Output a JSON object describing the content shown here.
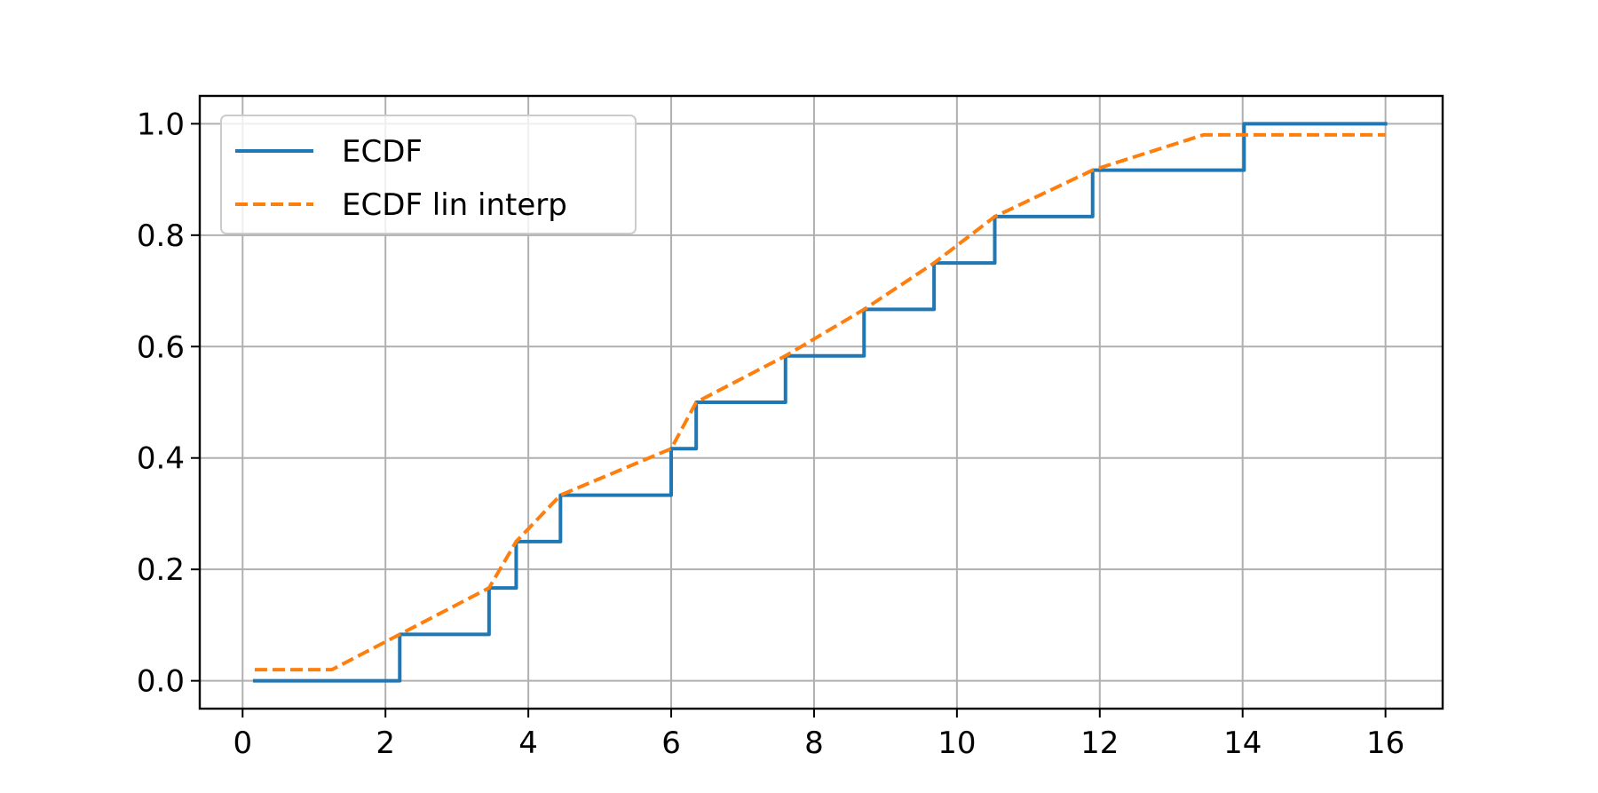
{
  "chart_data": {
    "type": "line",
    "title": "",
    "xlabel": "",
    "ylabel": "",
    "xlim": [
      -0.6,
      16.8
    ],
    "ylim": [
      -0.05,
      1.05
    ],
    "x_ticks": [
      0,
      2,
      4,
      6,
      8,
      10,
      12,
      14,
      16
    ],
    "x_tick_labels": [
      "0",
      "2",
      "4",
      "6",
      "8",
      "10",
      "12",
      "14",
      "16"
    ],
    "y_ticks": [
      0.0,
      0.2,
      0.4,
      0.6,
      0.8,
      1.0
    ],
    "y_tick_labels": [
      "0.0",
      "0.2",
      "0.4",
      "0.6",
      "0.8",
      "1.0"
    ],
    "grid": true,
    "legend": {
      "position": "top-left",
      "entries": [
        "ECDF",
        "ECDF lin interp"
      ]
    },
    "series": [
      {
        "name": "ECDF",
        "style": "step-post",
        "color": "#1f77b4",
        "x": [
          0.17,
          2.2,
          3.45,
          3.83,
          4.45,
          6.0,
          6.35,
          7.6,
          8.7,
          9.68,
          10.53,
          11.9,
          14.02,
          16.0
        ],
        "y": [
          0.0,
          0.0833,
          0.1667,
          0.25,
          0.3333,
          0.4167,
          0.5,
          0.5833,
          0.6667,
          0.75,
          0.8333,
          0.9167,
          1.0,
          1.0
        ]
      },
      {
        "name": "ECDF lin interp",
        "style": "dashed",
        "color": "#ff7f0e",
        "x": [
          0.17,
          1.25,
          2.2,
          3.45,
          3.83,
          4.45,
          6.0,
          6.35,
          7.6,
          8.7,
          9.68,
          10.53,
          11.9,
          13.45,
          16.0
        ],
        "y": [
          0.02,
          0.02,
          0.0833,
          0.1667,
          0.25,
          0.3333,
          0.4167,
          0.5,
          0.5833,
          0.6667,
          0.75,
          0.8333,
          0.9167,
          0.98,
          0.98
        ]
      }
    ]
  }
}
